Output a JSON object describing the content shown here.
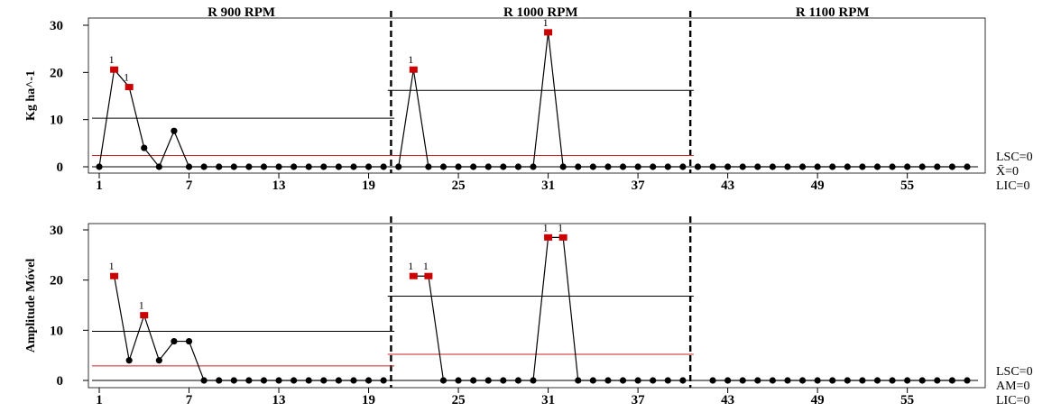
{
  "chart_data": [
    {
      "type": "line",
      "ylabel": "Kg ha^-1",
      "ylim": [
        0,
        30
      ],
      "y_ticks": [
        "0",
        "10",
        "20",
        "30"
      ],
      "x_ticks": [
        "1",
        "7",
        "13",
        "19",
        "25",
        "31",
        "37",
        "43",
        "49",
        "55"
      ],
      "x_tick_values": [
        1,
        7,
        13,
        19,
        25,
        31,
        37,
        43,
        49,
        55
      ],
      "xlim": [
        0,
        60
      ],
      "stages": [
        {
          "name": "R 900 RPM",
          "start": 1,
          "end": 20,
          "center_line": 10.3,
          "red_line": 2.4
        },
        {
          "name": "R 1000 RPM",
          "start": 21,
          "end": 40,
          "center_line": 16.2,
          "red_line": 2.4
        },
        {
          "name": "R 1100 RPM",
          "start": 41,
          "end": 59,
          "center_line": 0,
          "red_line": 0
        }
      ],
      "values": [
        0,
        20.6,
        16.9,
        4.0,
        0,
        7.6,
        0,
        0,
        0,
        0,
        0,
        0,
        0,
        0,
        0,
        0,
        0,
        0,
        0,
        0,
        0,
        20.6,
        0,
        0,
        0,
        0,
        0,
        0,
        0,
        0,
        28.5,
        0,
        0,
        0,
        0,
        0,
        0,
        0,
        0,
        0,
        0,
        0,
        0,
        0,
        0,
        0,
        0,
        0,
        0,
        0,
        0,
        0,
        0,
        0,
        0,
        0,
        0,
        0,
        0
      ],
      "flagged": [
        2,
        3,
        22,
        31
      ],
      "flag_label": "1",
      "limit_labels": [
        "LSC=0",
        "X̄=0",
        "LIC=0"
      ],
      "colors": {
        "line": "#000000",
        "point": "#000000",
        "flag": "#cc0000",
        "red_line": "#cc2222"
      }
    },
    {
      "type": "line",
      "ylabel": "Amplitude Móvel",
      "ylim": [
        0,
        30
      ],
      "y_ticks": [
        "0",
        "10",
        "20",
        "30"
      ],
      "x_ticks": [
        "1",
        "7",
        "13",
        "19",
        "25",
        "31",
        "37",
        "43",
        "49",
        "55"
      ],
      "x_tick_values": [
        1,
        7,
        13,
        19,
        25,
        31,
        37,
        43,
        49,
        55
      ],
      "xlim": [
        0,
        60
      ],
      "stages": [
        {
          "name": "R 900 RPM",
          "start": 1,
          "end": 20,
          "center_line": 9.8,
          "red_line": 2.9
        },
        {
          "name": "R 1000 RPM",
          "start": 21,
          "end": 40,
          "center_line": 16.8,
          "red_line": 5.2
        },
        {
          "name": "R 1100 RPM",
          "start": 41,
          "end": 59,
          "center_line": 0,
          "red_line": 0
        }
      ],
      "values": [
        null,
        20.8,
        4.0,
        13.0,
        4.0,
        7.8,
        7.8,
        0,
        0,
        0,
        0,
        0,
        0,
        0,
        0,
        0,
        0,
        0,
        0,
        0,
        null,
        20.8,
        20.8,
        0,
        0,
        0,
        0,
        0,
        0,
        0,
        28.5,
        28.5,
        0,
        0,
        0,
        0,
        0,
        0,
        0,
        0,
        null,
        0,
        0,
        0,
        0,
        0,
        0,
        0,
        0,
        0,
        0,
        0,
        0,
        0,
        0,
        0,
        0,
        0,
        0
      ],
      "flagged": [
        2,
        4,
        22,
        23,
        31,
        32
      ],
      "flag_label": "1",
      "limit_labels": [
        "LSC=0",
        "AM=0",
        "LIC=0"
      ],
      "colors": {
        "line": "#000000",
        "point": "#000000",
        "flag": "#cc0000",
        "red_line": "#cc2222"
      }
    }
  ]
}
